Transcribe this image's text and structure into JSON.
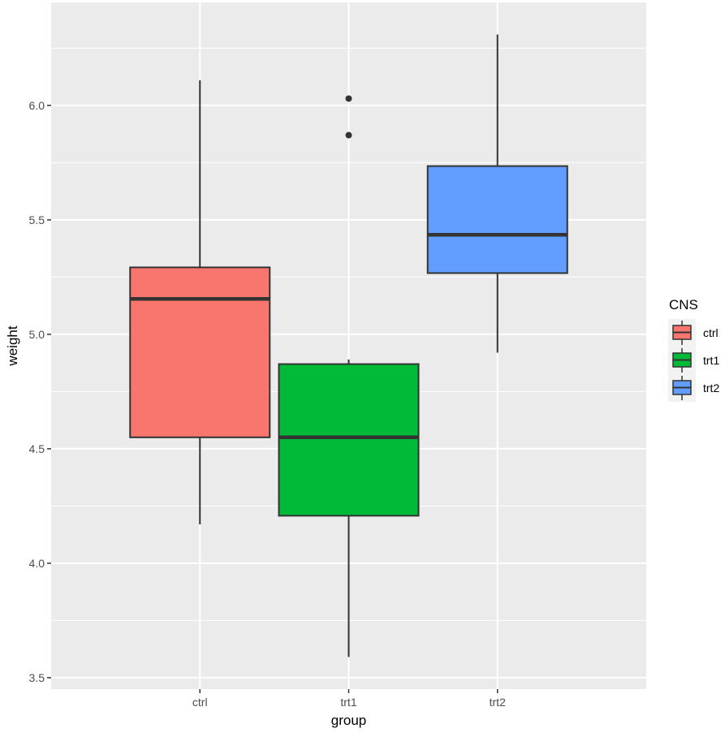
{
  "chart_data": {
    "type": "box",
    "xlabel": "group",
    "ylabel": "weight",
    "ylim": [
      3.45,
      6.45
    ],
    "yticks": [
      3.5,
      4.0,
      4.5,
      5.0,
      5.5,
      6.0
    ],
    "ytick_labels": [
      "3.5",
      "4.0",
      "4.5",
      "5.0",
      "5.5",
      "6.0"
    ],
    "categories": [
      "ctrl",
      "trt1",
      "trt2"
    ],
    "boxes": [
      {
        "category": "ctrl",
        "lower_whisker": 4.17,
        "q1": 4.55,
        "median": 5.155,
        "q3": 5.2925,
        "upper_whisker": 6.11,
        "outliers": [],
        "color": "#F8766D"
      },
      {
        "category": "trt1",
        "lower_whisker": 3.59,
        "q1": 4.2075,
        "median": 4.55,
        "q3": 4.87,
        "upper_whisker": 4.89,
        "outliers": [
          5.87,
          6.03
        ],
        "color": "#00BA38"
      },
      {
        "category": "trt2",
        "lower_whisker": 4.92,
        "q1": 5.2675,
        "median": 5.435,
        "q3": 5.735,
        "upper_whisker": 6.31,
        "outliers": [],
        "color": "#619CFF"
      }
    ],
    "grid": true,
    "legend": {
      "title": "CNS",
      "position": "right",
      "entries": [
        {
          "label": "ctrl",
          "color": "#F8766D"
        },
        {
          "label": "trt1",
          "color": "#00BA38"
        },
        {
          "label": "trt2",
          "color": "#619CFF"
        }
      ]
    },
    "colors": {
      "panel_background": "#EBEBEB",
      "grid_major": "#FFFFFF",
      "box_outline": "#333333",
      "axis_text": "#4D4D4D"
    }
  }
}
